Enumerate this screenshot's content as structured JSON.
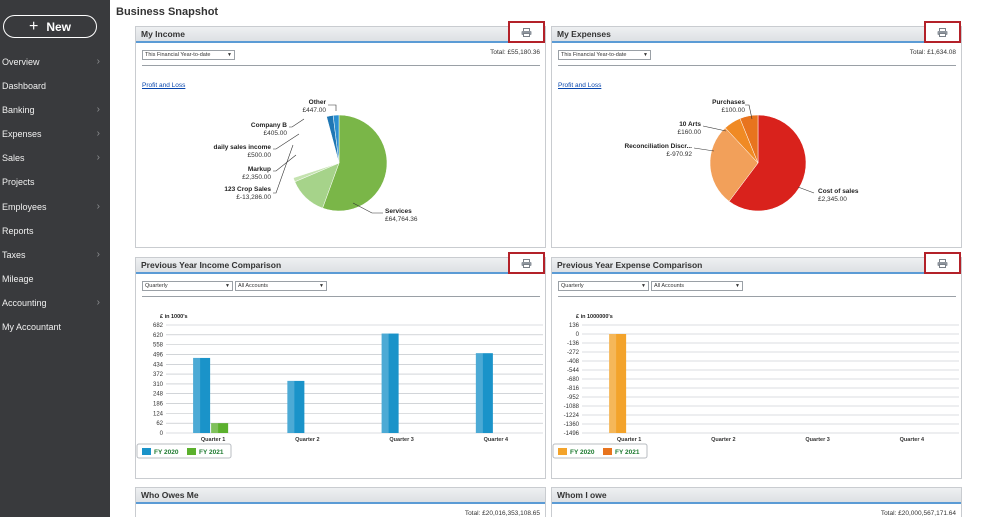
{
  "sidebar": {
    "new_label": "New",
    "items": [
      {
        "label": "Overview",
        "chevron": true
      },
      {
        "label": "Dashboard",
        "chevron": false
      },
      {
        "label": "Banking",
        "chevron": true
      },
      {
        "label": "Expenses",
        "chevron": true
      },
      {
        "label": "Sales",
        "chevron": true
      },
      {
        "label": "Projects",
        "chevron": false
      },
      {
        "label": "Employees",
        "chevron": true
      },
      {
        "label": "Reports",
        "chevron": false
      },
      {
        "label": "Taxes",
        "chevron": true
      },
      {
        "label": "Mileage",
        "chevron": false
      },
      {
        "label": "Accounting",
        "chevron": true
      },
      {
        "label": "My Accountant",
        "chevron": false
      }
    ]
  },
  "page": {
    "title": "Business Snapshot"
  },
  "icons": {
    "print": "printer-icon",
    "plus": "plus-icon",
    "chevron": "chevron-right-icon"
  },
  "colors": {
    "highlight_border": "#b32129",
    "header_underline": "#5b9bd5",
    "sidebar_bg": "#393a3d"
  },
  "panels": {
    "income": {
      "title": "My Income",
      "period": "This Financial Year-to-date",
      "total": "Total: £55,180.36",
      "link": "Profit and Loss"
    },
    "expenses": {
      "title": "My Expenses",
      "period": "This Financial Year-to-date",
      "total": "Total: £1,634.08",
      "link": "Profit and Loss"
    },
    "income_compare": {
      "title": "Previous Year Income Comparison",
      "period": "Quarterly",
      "accounts": "All Accounts"
    },
    "expense_compare": {
      "title": "Previous Year Expense Comparison",
      "period": "Quarterly",
      "accounts": "All Accounts"
    },
    "owes_me": {
      "title": "Who Owes Me",
      "total": "Total: £20,016,353,108.65"
    },
    "i_owe": {
      "title": "Whom I owe",
      "total": "Total: £20,000,567,171.64"
    }
  },
  "chart_data": [
    {
      "type": "pie",
      "slices": [
        {
          "label": "Services",
          "value": "£64,764.36",
          "color": "#7ab648"
        },
        {
          "label": "123 Crop Sales",
          "value": "£-13,286.00",
          "color": "#7ab648"
        },
        {
          "label": "Markup",
          "value": "£2,350.00",
          "color": "#a6d38a"
        },
        {
          "label": "daily sales income",
          "value": "£500.00",
          "color": "#c5e3b0"
        },
        {
          "label": "Company B",
          "value": "£405.00",
          "color": "#2a8fd0"
        },
        {
          "label": "Other",
          "value": "£447.00",
          "color": "#1f77b4"
        }
      ]
    },
    {
      "type": "pie",
      "slices": [
        {
          "label": "Cost of sales",
          "value": "£2,345.00",
          "color": "#d9221c"
        },
        {
          "label": "Reconciliation Discr...",
          "value": "£-970.92",
          "color": "#f2a05a"
        },
        {
          "label": "10 Arts",
          "value": "£160.00",
          "color": "#f08a24"
        },
        {
          "label": "Purchases",
          "value": "£100.00",
          "color": "#e8741e"
        }
      ]
    },
    {
      "type": "bar",
      "ylabel": "£ in 1000's",
      "ylim": [
        0,
        682
      ],
      "yticks": [
        "682",
        "620",
        "558",
        "496",
        "434",
        "372",
        "310",
        "248",
        "186",
        "124",
        "62",
        "0"
      ],
      "categories": [
        "Quarter 1",
        "Quarter 2",
        "Quarter 3",
        "Quarter 4"
      ],
      "series": [
        {
          "name": "FY 2020",
          "color": "#1a93c9",
          "values": [
            474,
            329,
            628,
            504
          ]
        },
        {
          "name": "FY 2021",
          "color": "#5bb02d",
          "values": [
            62,
            0,
            0,
            0
          ]
        }
      ]
    },
    {
      "type": "bar",
      "ylabel": "£ in 1000000's",
      "ylim": [
        -1496,
        136
      ],
      "yticks": [
        "136",
        "0",
        "-136",
        "-272",
        "-408",
        "-544",
        "-680",
        "-816",
        "-952",
        "-1088",
        "-1224",
        "-1360",
        "-1496"
      ],
      "categories": [
        "Quarter 1",
        "Quarter 2",
        "Quarter 3",
        "Quarter 4"
      ],
      "series": [
        {
          "name": "FY 2020",
          "color": "#f3a32b",
          "values": [
            -1496,
            0,
            0,
            0
          ]
        },
        {
          "name": "FY 2021",
          "color": "#e8741e",
          "values": [
            0,
            0,
            0,
            0
          ]
        }
      ]
    }
  ]
}
